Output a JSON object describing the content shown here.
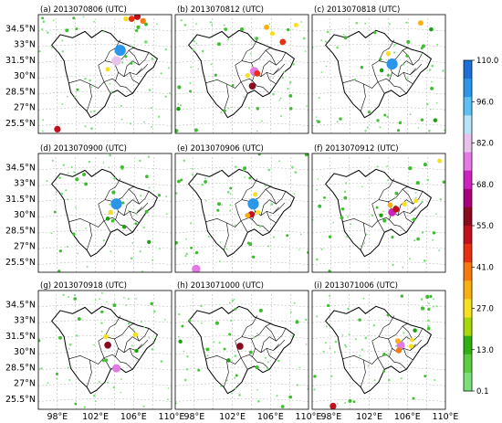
{
  "figure": {
    "panels": [
      {
        "id": "a",
        "title": "(a) 2013070806 (UTC)"
      },
      {
        "id": "b",
        "title": "(b) 2013070812 (UTC)"
      },
      {
        "id": "c",
        "title": "(c) 2013070818 (UTC)"
      },
      {
        "id": "d",
        "title": "(d) 2013070900 (UTC)"
      },
      {
        "id": "e",
        "title": "(e) 2013070906 (UTC)"
      },
      {
        "id": "f",
        "title": "(f) 2013070912 (UTC)"
      },
      {
        "id": "g",
        "title": "(g) 2013070918 (UTC)"
      },
      {
        "id": "h",
        "title": "(h) 2013071000 (UTC)"
      },
      {
        "id": "i",
        "title": "(i) 2013071006 (UTC)"
      }
    ],
    "lat_ticks": [
      "34.5°N",
      "33°N",
      "31.5°N",
      "30°N",
      "28.5°N",
      "27°N",
      "25.5°N"
    ],
    "lon_ticks": [
      "98°E",
      "102°E",
      "106°E",
      "110°E"
    ],
    "colorbar": {
      "labels": [
        "110.0",
        "96.0",
        "82.0",
        "68.0",
        "55.0",
        "41.0",
        "27.0",
        "13.0",
        "0.1"
      ],
      "colors": [
        "#1d6fd8",
        "#2a96ea",
        "#5cc0f4",
        "#b6e3f6",
        "#e9c2ec",
        "#e37ae3",
        "#cc22c0",
        "#a8007a",
        "#8a0a1e",
        "#c2101c",
        "#e83010",
        "#f57a10",
        "#f8b012",
        "#f6e020",
        "#a7d80a",
        "#2fb010",
        "#5ccc40",
        "#7be07a"
      ]
    }
  },
  "chart_data": [
    {
      "type": "scatter",
      "panel": "a",
      "points": [
        [
          104.6,
          32.4,
          100
        ],
        [
          104.2,
          31.4,
          80
        ],
        [
          103.3,
          30.6,
          20
        ],
        [
          105.8,
          35.4,
          40
        ],
        [
          106.4,
          35.6,
          45
        ],
        [
          107.0,
          35.2,
          35
        ],
        [
          105.2,
          35.4,
          25
        ],
        [
          98.0,
          24.9,
          45
        ],
        [
          99.0,
          34.3,
          8
        ],
        [
          106.5,
          34.6,
          10
        ],
        [
          107.3,
          33.2,
          5
        ]
      ]
    },
    {
      "type": "scatter",
      "panel": "b",
      "points": [
        [
          104.3,
          30.4,
          70
        ],
        [
          104.1,
          29.0,
          50
        ],
        [
          104.6,
          30.2,
          40
        ],
        [
          103.6,
          30.0,
          25
        ],
        [
          106.2,
          34.0,
          22
        ],
        [
          105.6,
          34.6,
          30
        ],
        [
          107.3,
          33.2,
          40
        ],
        [
          103.0,
          34.4,
          10
        ],
        [
          98.2,
          24.8,
          10
        ],
        [
          100.6,
          33.0,
          8
        ],
        [
          108.7,
          34.8,
          20
        ]
      ]
    },
    {
      "type": "scatter",
      "panel": "c",
      "points": [
        [
          104.4,
          31.1,
          100
        ],
        [
          104.0,
          32.1,
          25
        ],
        [
          103.3,
          30.5,
          15
        ],
        [
          107.4,
          35.0,
          30
        ],
        [
          108.5,
          34.4,
          15
        ],
        [
          99.5,
          33.6,
          8
        ],
        [
          106.1,
          33.2,
          10
        ],
        [
          107.7,
          32.8,
          8
        ]
      ]
    },
    {
      "type": "scatter",
      "panel": "d",
      "points": [
        [
          104.2,
          31.0,
          100
        ],
        [
          103.6,
          30.2,
          25
        ],
        [
          103.3,
          29.6,
          15
        ],
        [
          100.8,
          33.8,
          8
        ],
        [
          104.8,
          34.5,
          10
        ],
        [
          103.9,
          32.1,
          10
        ],
        [
          101.0,
          32.9,
          8
        ],
        [
          107.4,
          33.6,
          6
        ]
      ]
    },
    {
      "type": "scatter",
      "panel": "e",
      "points": [
        [
          104.2,
          31.0,
          100
        ],
        [
          104.0,
          30.0,
          45
        ],
        [
          103.6,
          29.9,
          30
        ],
        [
          104.7,
          30.2,
          20
        ],
        [
          104.4,
          31.9,
          20
        ],
        [
          98.2,
          24.8,
          70
        ],
        [
          103.3,
          34.4,
          8
        ],
        [
          100.6,
          31.0,
          8
        ]
      ]
    },
    {
      "type": "scatter",
      "panel": "f",
      "points": [
        [
          104.4,
          30.2,
          60
        ],
        [
          104.8,
          30.5,
          45
        ],
        [
          104.2,
          30.9,
          30
        ],
        [
          105.7,
          31.0,
          25
        ],
        [
          106.9,
          31.3,
          20
        ],
        [
          103.6,
          29.4,
          10
        ],
        [
          106.3,
          34.4,
          12
        ],
        [
          109.4,
          35.1,
          20
        ],
        [
          107.1,
          33.0,
          10
        ]
      ]
    },
    {
      "type": "scatter",
      "panel": "g",
      "points": [
        [
          103.3,
          30.6,
          50
        ],
        [
          104.2,
          28.4,
          65
        ],
        [
          103.1,
          31.4,
          25
        ],
        [
          106.2,
          31.6,
          25
        ],
        [
          98.3,
          31.3,
          8
        ],
        [
          104.0,
          34.4,
          8
        ],
        [
          100.3,
          33.1,
          8
        ]
      ]
    },
    {
      "type": "scatter",
      "panel": "h",
      "points": [
        [
          102.8,
          30.5,
          50
        ],
        [
          100.4,
          32.7,
          10
        ],
        [
          104.6,
          28.5,
          10
        ],
        [
          99.4,
          30.2,
          8
        ],
        [
          105.0,
          33.9,
          10
        ],
        [
          108.8,
          32.8,
          8
        ]
      ]
    },
    {
      "type": "scatter",
      "panel": "i",
      "points": [
        [
          105.3,
          30.6,
          65
        ],
        [
          105.1,
          30.1,
          35
        ],
        [
          105.0,
          31.0,
          30
        ],
        [
          106.4,
          30.5,
          25
        ],
        [
          106.5,
          31.1,
          20
        ],
        [
          106.8,
          32.0,
          15
        ],
        [
          98.2,
          24.8,
          45
        ],
        [
          108.1,
          35.2,
          10
        ],
        [
          107.6,
          34.1,
          10
        ]
      ]
    }
  ]
}
